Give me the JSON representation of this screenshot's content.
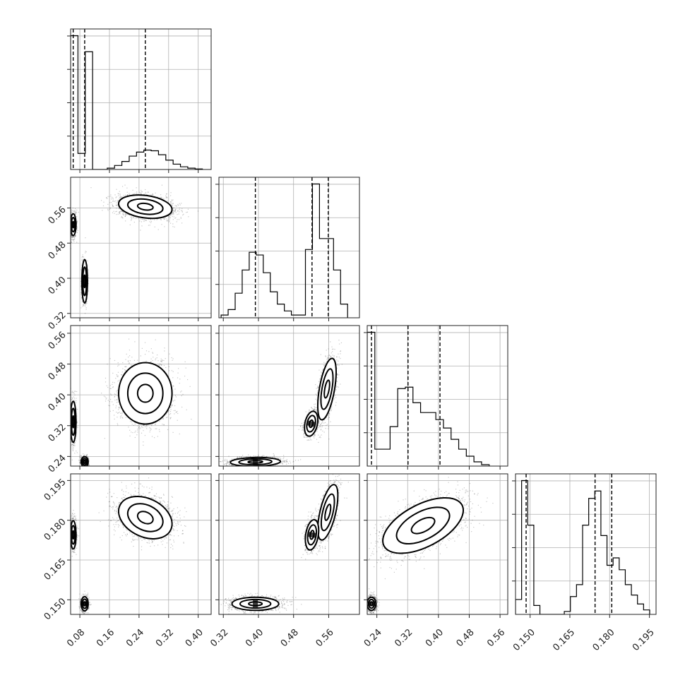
{
  "chart_data": {
    "type": "corner",
    "grid": true,
    "parameters": [
      {
        "ticks": [
          0.08,
          0.16,
          0.24,
          0.32,
          0.4
        ],
        "tick_labels": [
          "0.08",
          "0.16",
          "0.24",
          "0.32",
          "0.40"
        ],
        "range": [
          0.055,
          0.435
        ],
        "quantiles": [
          0.062,
          0.093,
          0.257
        ],
        "hist": {
          "edges": [
            0.055,
            0.0748,
            0.0946,
            0.1144,
            0.1342,
            0.154,
            0.1738,
            0.1936,
            0.2134,
            0.2332,
            0.253,
            0.2728,
            0.2926,
            0.3124,
            0.3322,
            0.352,
            0.3718,
            0.3916,
            0.4114
          ],
          "counts": [
            1.0,
            0.12,
            0.88,
            0.0,
            0.0,
            0.01,
            0.03,
            0.06,
            0.1,
            0.13,
            0.145,
            0.14,
            0.11,
            0.07,
            0.04,
            0.02,
            0.01,
            0.004
          ]
        }
      },
      {
        "ticks": [
          0.32,
          0.4,
          0.48,
          0.56
        ],
        "tick_labels": [
          "0.32",
          "0.40",
          "0.48",
          "0.56"
        ],
        "range": [
          0.31,
          0.63
        ],
        "quantiles": [
          0.393,
          0.522,
          0.559
        ],
        "hist": {
          "edges": [
            0.315,
            0.331,
            0.347,
            0.363,
            0.379,
            0.395,
            0.411,
            0.427,
            0.443,
            0.459,
            0.475,
            0.491,
            0.507,
            0.523,
            0.539,
            0.555,
            0.571,
            0.587,
            0.603
          ],
          "counts": [
            0.02,
            0.06,
            0.18,
            0.35,
            0.48,
            0.46,
            0.33,
            0.19,
            0.1,
            0.05,
            0.02,
            0.02,
            0.5,
            0.98,
            0.58,
            0.58,
            0.35,
            0.1
          ]
        }
      },
      {
        "ticks": [
          0.24,
          0.32,
          0.4,
          0.48,
          0.56
        ],
        "tick_labels": [
          "0.24",
          "0.32",
          "0.40",
          "0.48",
          "0.56"
        ],
        "range": [
          0.215,
          0.58
        ],
        "quantiles": [
          0.226,
          0.321,
          0.404
        ],
        "hist": {
          "edges": [
            0.215,
            0.2348,
            0.2546,
            0.2744,
            0.2942,
            0.314,
            0.3338,
            0.3536,
            0.3734,
            0.3932,
            0.413,
            0.4328,
            0.4526,
            0.4724,
            0.4922,
            0.512,
            0.5318
          ],
          "counts": [
            0.95,
            0.12,
            0.12,
            0.28,
            0.55,
            0.56,
            0.45,
            0.38,
            0.38,
            0.33,
            0.27,
            0.19,
            0.12,
            0.07,
            0.03,
            0.01
          ]
        }
      },
      {
        "ticks": [
          0.15,
          0.165,
          0.18,
          0.195
        ],
        "tick_labels": [
          "0.150",
          "0.165",
          "0.180",
          "0.195"
        ],
        "range": [
          0.1445,
          0.1975
        ],
        "quantiles": [
          0.1485,
          0.1745,
          0.1808
        ],
        "hist": {
          "edges": [
            0.1445,
            0.1468,
            0.1491,
            0.1514,
            0.1537,
            0.156,
            0.1583,
            0.1606,
            0.1629,
            0.1652,
            0.1675,
            0.1698,
            0.1721,
            0.1744,
            0.1767,
            0.179,
            0.1813,
            0.1836,
            0.1859,
            0.1882,
            0.1905,
            0.1928,
            0.1951
          ],
          "counts": [
            0.1,
            0.9,
            0.6,
            0.06,
            0.0,
            0.0,
            0.0,
            0.0,
            0.02,
            0.12,
            0.2,
            0.6,
            0.78,
            0.83,
            0.53,
            0.33,
            0.38,
            0.3,
            0.2,
            0.13,
            0.07,
            0.03
          ]
        }
      }
    ],
    "pairs": [
      {
        "x": 0,
        "y": 1,
        "modes": [
          {
            "cx": 0.257,
            "cy": 0.563,
            "sx": 0.038,
            "sy": 0.014,
            "rho": -0.25,
            "w": 0.55
          },
          {
            "cx": 0.062,
            "cy": 0.522,
            "sx": 0.004,
            "sy": 0.013,
            "rho": 0.0,
            "w": 0.25
          },
          {
            "cx": 0.093,
            "cy": 0.393,
            "sx": 0.004,
            "sy": 0.026,
            "rho": 0.0,
            "w": 0.2
          }
        ]
      },
      {
        "x": 0,
        "y": 2,
        "modes": [
          {
            "cx": 0.257,
            "cy": 0.404,
            "sx": 0.038,
            "sy": 0.042,
            "rho": 0.0,
            "w": 0.55
          },
          {
            "cx": 0.062,
            "cy": 0.33,
            "sx": 0.004,
            "sy": 0.028,
            "rho": 0.0,
            "w": 0.25
          },
          {
            "cx": 0.093,
            "cy": 0.226,
            "sx": 0.005,
            "sy": 0.007,
            "rho": 0.0,
            "w": 0.2
          }
        ]
      },
      {
        "x": 1,
        "y": 2,
        "modes": [
          {
            "cx": 0.556,
            "cy": 0.415,
            "sx": 0.011,
            "sy": 0.042,
            "rho": 0.55,
            "w": 0.35
          },
          {
            "cx": 0.52,
            "cy": 0.325,
            "sx": 0.008,
            "sy": 0.017,
            "rho": 0.3,
            "w": 0.2
          },
          {
            "cx": 0.393,
            "cy": 0.226,
            "sx": 0.03,
            "sy": 0.006,
            "rho": 0.1,
            "w": 0.45
          }
        ]
      },
      {
        "x": 0,
        "y": 3,
        "modes": [
          {
            "cx": 0.257,
            "cy": 0.181,
            "sx": 0.038,
            "sy": 0.0042,
            "rho": -0.3,
            "w": 0.55
          },
          {
            "cx": 0.062,
            "cy": 0.1745,
            "sx": 0.004,
            "sy": 0.0028,
            "rho": 0.0,
            "w": 0.25
          },
          {
            "cx": 0.093,
            "cy": 0.1485,
            "sx": 0.005,
            "sy": 0.0014,
            "rho": 0.0,
            "w": 0.2
          }
        ]
      },
      {
        "x": 1,
        "y": 3,
        "modes": [
          {
            "cx": 0.558,
            "cy": 0.183,
            "sx": 0.012,
            "sy": 0.0055,
            "rho": 0.6,
            "w": 0.35
          },
          {
            "cx": 0.522,
            "cy": 0.1745,
            "sx": 0.008,
            "sy": 0.003,
            "rho": 0.3,
            "w": 0.2
          },
          {
            "cx": 0.393,
            "cy": 0.1485,
            "sx": 0.028,
            "sy": 0.0013,
            "rho": 0.0,
            "w": 0.45
          }
        ]
      },
      {
        "x": 2,
        "y": 3,
        "modes": [
          {
            "cx": 0.36,
            "cy": 0.178,
            "sx": 0.055,
            "sy": 0.0055,
            "rho": 0.55,
            "w": 0.55
          },
          {
            "cx": 0.226,
            "cy": 0.1485,
            "sx": 0.006,
            "sy": 0.0013,
            "rho": 0.0,
            "w": 0.45
          }
        ]
      }
    ]
  }
}
